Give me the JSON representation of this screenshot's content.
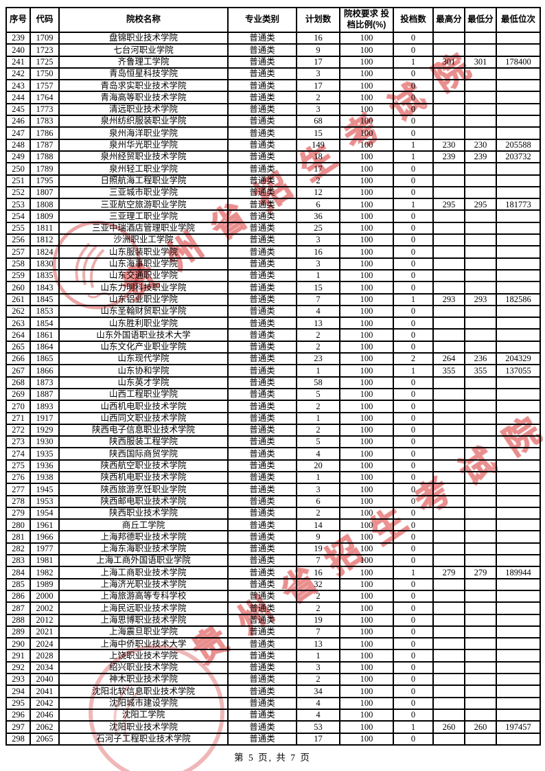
{
  "table": {
    "headers": [
      "序号",
      "代码",
      "院校名称",
      "专业类别",
      "计划数",
      "院校要求 投档比例(%)",
      "投档数",
      "最高分",
      "最低分",
      "最低位次"
    ],
    "rows": [
      [
        "239",
        "1709",
        "盘锦职业技术学院",
        "普通类",
        "16",
        "100",
        "0",
        "",
        "",
        ""
      ],
      [
        "240",
        "1723",
        "七台河职业学院",
        "普通类",
        "9",
        "100",
        "0",
        "",
        "",
        ""
      ],
      [
        "241",
        "1725",
        "齐鲁理工学院",
        "普通类",
        "17",
        "100",
        "1",
        "301",
        "301",
        "178400"
      ],
      [
        "242",
        "1750",
        "青岛恒星科技学院",
        "普通类",
        "3",
        "100",
        "0",
        "",
        "",
        ""
      ],
      [
        "243",
        "1757",
        "青岛求实职业技术学院",
        "普通类",
        "17",
        "100",
        "0",
        "",
        "",
        ""
      ],
      [
        "244",
        "1764",
        "青海高等职业技术学院",
        "普通类",
        "2",
        "100",
        "0",
        "",
        "",
        ""
      ],
      [
        "245",
        "1773",
        "清远职业技术学院",
        "普通类",
        "3",
        "100",
        "0",
        "",
        "",
        ""
      ],
      [
        "246",
        "1783",
        "泉州纺织服装职业学院",
        "普通类",
        "68",
        "100",
        "0",
        "",
        "",
        ""
      ],
      [
        "247",
        "1786",
        "泉州海洋职业学院",
        "普通类",
        "15",
        "100",
        "0",
        "",
        "",
        ""
      ],
      [
        "248",
        "1787",
        "泉州华光职业学院",
        "普通类",
        "149",
        "100",
        "1",
        "230",
        "230",
        "205588"
      ],
      [
        "249",
        "1788",
        "泉州经贸职业技术学院",
        "普通类",
        "18",
        "100",
        "1",
        "239",
        "239",
        "203732"
      ],
      [
        "250",
        "1789",
        "泉州轻工职业学院",
        "普通类",
        "17",
        "100",
        "0",
        "",
        "",
        ""
      ],
      [
        "251",
        "1795",
        "日照航海工程职业学院",
        "普通类",
        "2",
        "100",
        "0",
        "",
        "",
        ""
      ],
      [
        "252",
        "1807",
        "三亚城市职业学院",
        "普通类",
        "12",
        "100",
        "0",
        "",
        "",
        ""
      ],
      [
        "253",
        "1808",
        "三亚航空旅游职业学院",
        "普通类",
        "6",
        "100",
        "1",
        "295",
        "295",
        "181773"
      ],
      [
        "254",
        "1809",
        "三亚理工职业学院",
        "普通类",
        "36",
        "100",
        "0",
        "",
        "",
        ""
      ],
      [
        "255",
        "1811",
        "三亚中瑞酒店管理职业学院",
        "普通类",
        "25",
        "100",
        "0",
        "",
        "",
        ""
      ],
      [
        "256",
        "1812",
        "沙洲职业工学院",
        "普通类",
        "3",
        "100",
        "0",
        "",
        "",
        ""
      ],
      [
        "257",
        "1824",
        "山东服装职业学院",
        "普通类",
        "16",
        "100",
        "0",
        "",
        "",
        ""
      ],
      [
        "258",
        "1830",
        "山东海事职业学院",
        "普通类",
        "3",
        "100",
        "0",
        "",
        "",
        ""
      ],
      [
        "259",
        "1835",
        "山东交通职业学院",
        "普通类",
        "1",
        "100",
        "0",
        "",
        "",
        ""
      ],
      [
        "260",
        "1843",
        "山东力明科技职业学院",
        "普通类",
        "15",
        "100",
        "0",
        "",
        "",
        ""
      ],
      [
        "261",
        "1845",
        "山东铝业职业学院",
        "普通类",
        "7",
        "100",
        "1",
        "293",
        "293",
        "182586"
      ],
      [
        "262",
        "1853",
        "山东圣翰财贸职业学院",
        "普通类",
        "4",
        "100",
        "0",
        "",
        "",
        ""
      ],
      [
        "263",
        "1854",
        "山东胜利职业学院",
        "普通类",
        "13",
        "100",
        "0",
        "",
        "",
        ""
      ],
      [
        "264",
        "1861",
        "山东外国语职业技术大学",
        "普通类",
        "2",
        "100",
        "0",
        "",
        "",
        ""
      ],
      [
        "265",
        "1864",
        "山东文化产业职业学院",
        "普通类",
        "2",
        "100",
        "0",
        "",
        "",
        ""
      ],
      [
        "266",
        "1865",
        "山东现代学院",
        "普通类",
        "23",
        "100",
        "2",
        "264",
        "236",
        "204329"
      ],
      [
        "267",
        "1866",
        "山东协和学院",
        "普通类",
        "1",
        "100",
        "1",
        "355",
        "355",
        "137055"
      ],
      [
        "268",
        "1873",
        "山东英才学院",
        "普通类",
        "58",
        "100",
        "0",
        "",
        "",
        ""
      ],
      [
        "269",
        "1887",
        "山西工程职业学院",
        "普通类",
        "5",
        "100",
        "0",
        "",
        "",
        ""
      ],
      [
        "270",
        "1893",
        "山西机电职业技术学院",
        "普通类",
        "2",
        "100",
        "0",
        "",
        "",
        ""
      ],
      [
        "271",
        "1917",
        "山西同文职业技术学院",
        "普通类",
        "1",
        "100",
        "0",
        "",
        "",
        ""
      ],
      [
        "272",
        "1929",
        "陕西电子信息职业技术学院",
        "普通类",
        "2",
        "100",
        "0",
        "",
        "",
        ""
      ],
      [
        "273",
        "1930",
        "陕西服装工程学院",
        "普通类",
        "5",
        "100",
        "0",
        "",
        "",
        ""
      ],
      [
        "274",
        "1935",
        "陕西国际商贸学院",
        "普通类",
        "4",
        "100",
        "0",
        "",
        "",
        ""
      ],
      [
        "275",
        "1936",
        "陕西航空职业技术学院",
        "普通类",
        "20",
        "100",
        "0",
        "",
        "",
        ""
      ],
      [
        "276",
        "1938",
        "陕西机电职业技术学院",
        "普通类",
        "1",
        "100",
        "0",
        "",
        "",
        ""
      ],
      [
        "277",
        "1945",
        "陕西旅游烹饪职业学院",
        "普通类",
        "3",
        "100",
        "0",
        "",
        "",
        ""
      ],
      [
        "278",
        "1953",
        "陕西邮电职业技术学院",
        "普通类",
        "6",
        "100",
        "0",
        "",
        "",
        ""
      ],
      [
        "279",
        "1954",
        "陕西职业技术学院",
        "普通类",
        "2",
        "100",
        "0",
        "",
        "",
        ""
      ],
      [
        "280",
        "1961",
        "商丘工学院",
        "普通类",
        "14",
        "100",
        "0",
        "",
        "",
        ""
      ],
      [
        "281",
        "1966",
        "上海邦德职业技术学院",
        "普通类",
        "9",
        "100",
        "0",
        "",
        "",
        ""
      ],
      [
        "282",
        "1977",
        "上海东海职业技术学院",
        "普通类",
        "19",
        "100",
        "0",
        "",
        "",
        ""
      ],
      [
        "283",
        "1981",
        "上海工商外国语职业学院",
        "普通类",
        "7",
        "100",
        "0",
        "",
        "",
        ""
      ],
      [
        "284",
        "1982",
        "上海工商职业技术学院",
        "普通类",
        "16",
        "100",
        "1",
        "279",
        "279",
        "189944"
      ],
      [
        "285",
        "1989",
        "上海济光职业技术学院",
        "普通类",
        "32",
        "100",
        "0",
        "",
        "",
        ""
      ],
      [
        "286",
        "2000",
        "上海旅游高等专科学校",
        "普通类",
        "2",
        "100",
        "0",
        "",
        "",
        ""
      ],
      [
        "287",
        "2002",
        "上海民远职业技术学院",
        "普通类",
        "2",
        "100",
        "0",
        "",
        "",
        ""
      ],
      [
        "288",
        "2012",
        "上海思博职业技术学院",
        "普通类",
        "19",
        "100",
        "0",
        "",
        "",
        ""
      ],
      [
        "289",
        "2021",
        "上海震旦职业学院",
        "普通类",
        "7",
        "100",
        "0",
        "",
        "",
        ""
      ],
      [
        "290",
        "2024",
        "上海中侨职业技术大学",
        "普通类",
        "13",
        "100",
        "0",
        "",
        "",
        ""
      ],
      [
        "291",
        "2028",
        "上饶职业技术学院",
        "普通类",
        "1",
        "100",
        "0",
        "",
        "",
        ""
      ],
      [
        "292",
        "2034",
        "绍兴职业技术学院",
        "普通类",
        "3",
        "100",
        "0",
        "",
        "",
        ""
      ],
      [
        "293",
        "2040",
        "神木职业技术学院",
        "普通类",
        "2",
        "100",
        "0",
        "",
        "",
        ""
      ],
      [
        "294",
        "2041",
        "沈阳北软信息职业技术学院",
        "普通类",
        "34",
        "100",
        "0",
        "",
        "",
        ""
      ],
      [
        "295",
        "2042",
        "沈阳城市建设学院",
        "普通类",
        "4",
        "100",
        "0",
        "",
        "",
        ""
      ],
      [
        "296",
        "2046",
        "沈阳工学院",
        "普通类",
        "4",
        "100",
        "0",
        "",
        "",
        ""
      ],
      [
        "297",
        "2062",
        "沈阳职业技术学院",
        "普通类",
        "53",
        "100",
        "1",
        "260",
        "260",
        "197457"
      ],
      [
        "298",
        "2065",
        "石河子工程职业技术学院",
        "普通类",
        "17",
        "100",
        "0",
        "",
        "",
        ""
      ]
    ]
  },
  "watermark": {
    "text": "贵州省招生考试院",
    "color": "#de5555"
  },
  "footer": {
    "page_label": "第 5 页, 共 7 页"
  }
}
